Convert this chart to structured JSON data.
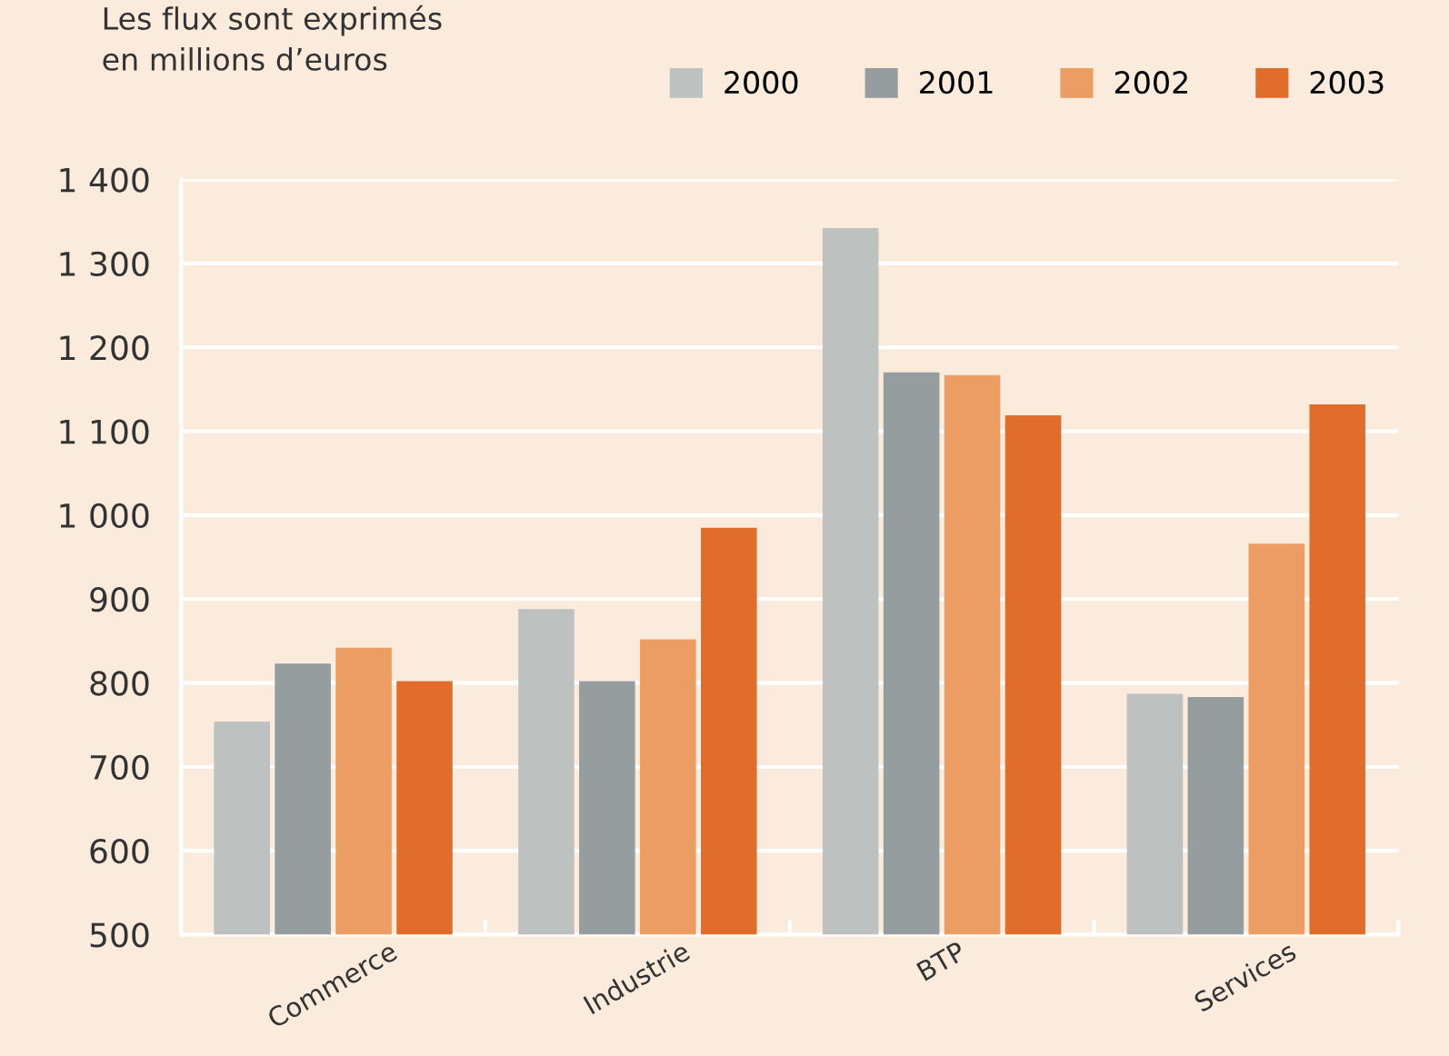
{
  "chart_data": {
    "type": "bar",
    "title": "Les flux sont exprimés\nen millions d’euros",
    "categories": [
      "Commerce",
      "Industrie",
      "BTP",
      "Services"
    ],
    "series": [
      {
        "name": "2000",
        "color": "#bdc2c1",
        "values": [
          754,
          888,
          1342,
          787
        ]
      },
      {
        "name": "2001",
        "color": "#969d9e",
        "values": [
          823,
          802,
          1170,
          783
        ]
      },
      {
        "name": "2002",
        "color": "#eb9d63",
        "values": [
          842,
          852,
          1167,
          966
        ]
      },
      {
        "name": "2003",
        "color": "#e06d2b",
        "values": [
          802,
          985,
          1119,
          1132
        ]
      }
    ],
    "ylim": [
      500,
      1400
    ],
    "yticks": [
      500,
      600,
      700,
      800,
      900,
      {
        "value": 1000,
        "label": "1 000"
      },
      {
        "value": 1100,
        "label": "1 100"
      },
      {
        "value": 1200,
        "label": "1 200"
      },
      {
        "value": 1300,
        "label": "1 300"
      },
      {
        "value": 1400,
        "label": "1 400"
      }
    ],
    "grid": "y",
    "legend": "top right"
  }
}
